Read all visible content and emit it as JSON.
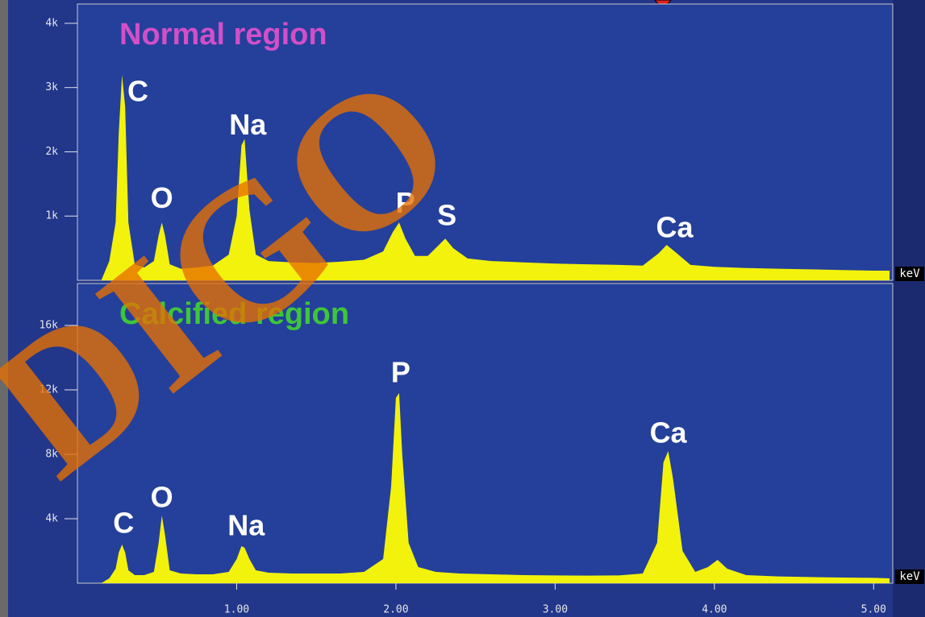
{
  "watermark": "DIGO",
  "chart_data": [
    {
      "type": "area",
      "title": "Normal region",
      "title_color": "#d24fc8",
      "color": "#f2f20c",
      "xlabel": "keV",
      "x": [
        0.15,
        0.2,
        0.24,
        0.26,
        0.28,
        0.3,
        0.32,
        0.36,
        0.42,
        0.48,
        0.51,
        0.53,
        0.55,
        0.58,
        0.65,
        0.75,
        0.85,
        0.95,
        1.0,
        1.03,
        1.05,
        1.08,
        1.12,
        1.2,
        1.35,
        1.5,
        1.65,
        1.8,
        1.92,
        1.98,
        2.02,
        2.06,
        2.12,
        2.2,
        2.27,
        2.31,
        2.36,
        2.45,
        2.6,
        2.8,
        3.0,
        3.2,
        3.4,
        3.55,
        3.65,
        3.7,
        3.75,
        3.85,
        4.0,
        4.2,
        4.4,
        4.6,
        4.8,
        5.0,
        5.1
      ],
      "values": [
        0,
        300,
        900,
        2300,
        3200,
        2700,
        900,
        250,
        200,
        300,
        700,
        900,
        700,
        250,
        180,
        200,
        230,
        400,
        1000,
        2100,
        2200,
        1100,
        400,
        300,
        280,
        270,
        290,
        320,
        450,
        750,
        900,
        650,
        380,
        380,
        550,
        650,
        500,
        340,
        300,
        280,
        260,
        250,
        240,
        230,
        420,
        550,
        450,
        240,
        210,
        190,
        180,
        170,
        160,
        150,
        150
      ],
      "xlim": [
        0,
        5.12
      ],
      "ylim": [
        0,
        4300
      ],
      "yticks": [
        {
          "value": 1000,
          "label": "1k"
        },
        {
          "value": 2000,
          "label": "2k"
        },
        {
          "value": 3000,
          "label": "3k"
        },
        {
          "value": 4000,
          "label": "4k"
        }
      ],
      "annotations": [
        {
          "text": "C",
          "x": 0.38,
          "y": 2910
        },
        {
          "text": "O",
          "x": 0.53,
          "y": 1250
        },
        {
          "text": "Na",
          "x": 1.07,
          "y": 2390
        },
        {
          "text": "P",
          "x": 2.06,
          "y": 1175
        },
        {
          "text": "S",
          "x": 2.32,
          "y": 975
        },
        {
          "text": "Ca",
          "x": 3.75,
          "y": 790
        }
      ]
    },
    {
      "type": "area",
      "title": "Calcified region",
      "title_color": "#3ec63a",
      "color": "#f2f20c",
      "xlabel": "keV",
      "x": [
        0.15,
        0.2,
        0.24,
        0.26,
        0.28,
        0.3,
        0.32,
        0.36,
        0.42,
        0.48,
        0.51,
        0.53,
        0.55,
        0.58,
        0.65,
        0.75,
        0.85,
        0.95,
        1.0,
        1.03,
        1.05,
        1.08,
        1.12,
        1.2,
        1.35,
        1.5,
        1.65,
        1.8,
        1.92,
        1.97,
        2.0,
        2.02,
        2.04,
        2.08,
        2.14,
        2.25,
        2.4,
        2.6,
        2.8,
        3.0,
        3.2,
        3.4,
        3.55,
        3.64,
        3.68,
        3.71,
        3.74,
        3.8,
        3.88,
        3.96,
        4.02,
        4.08,
        4.2,
        4.4,
        4.6,
        4.8,
        5.0,
        5.1
      ],
      "values": [
        0,
        300,
        900,
        1900,
        2400,
        1900,
        800,
        500,
        500,
        700,
        2500,
        4200,
        3000,
        800,
        600,
        550,
        550,
        700,
        1500,
        2300,
        2200,
        1500,
        800,
        650,
        600,
        600,
        600,
        700,
        1500,
        6000,
        11500,
        11800,
        8000,
        2500,
        1000,
        700,
        600,
        550,
        500,
        480,
        470,
        480,
        600,
        2500,
        7500,
        8200,
        6500,
        2000,
        700,
        1000,
        1450,
        900,
        500,
        420,
        380,
        350,
        330,
        300
      ],
      "xlim": [
        0,
        5.12
      ],
      "ylim": [
        0,
        18600
      ],
      "xticks": [
        {
          "value": 1,
          "label": "1.00"
        },
        {
          "value": 2,
          "label": "2.00"
        },
        {
          "value": 3,
          "label": "3.00"
        },
        {
          "value": 4,
          "label": "4.00"
        },
        {
          "value": 5,
          "label": "5.00"
        }
      ],
      "yticks": [
        {
          "value": 4000,
          "label": "4k"
        },
        {
          "value": 8000,
          "label": "8k"
        },
        {
          "value": 12000,
          "label": "12k"
        },
        {
          "value": 16000,
          "label": "16k"
        }
      ],
      "annotations": [
        {
          "text": "C",
          "x": 0.29,
          "y": 3600
        },
        {
          "text": "O",
          "x": 0.53,
          "y": 5200
        },
        {
          "text": "Na",
          "x": 1.06,
          "y": 3450
        },
        {
          "text": "P",
          "x": 2.03,
          "y": 12950
        },
        {
          "text": "Ca",
          "x": 3.71,
          "y": 9200
        }
      ]
    }
  ]
}
